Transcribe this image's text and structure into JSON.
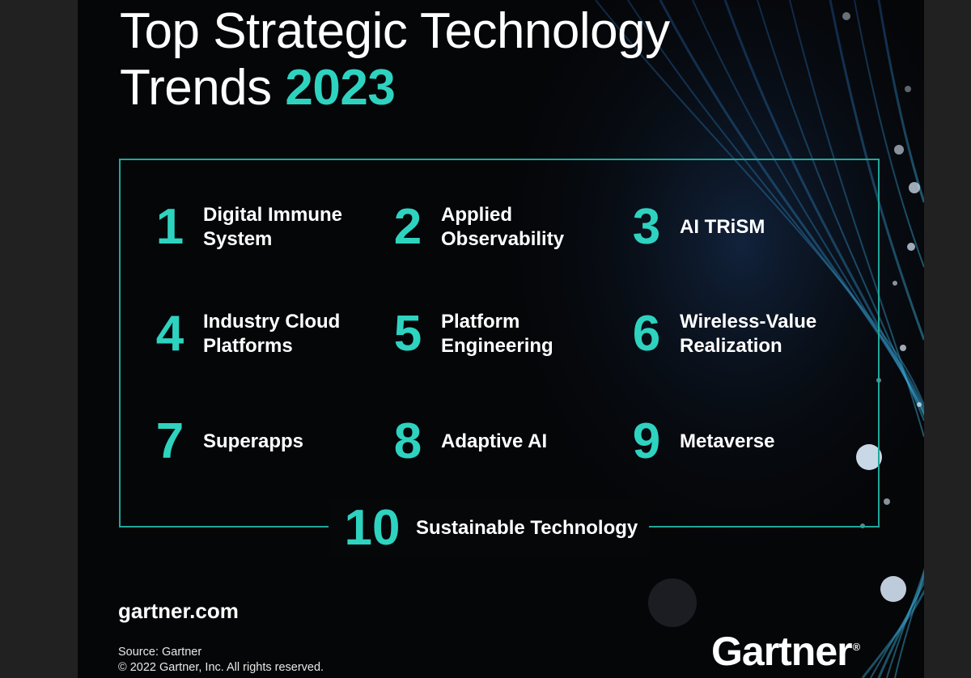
{
  "title": {
    "line1": "Top Strategic Technology",
    "line2_prefix": "Trends",
    "year": "2023"
  },
  "trends": [
    {
      "number": "1",
      "label": "Digital Immune\nSystem"
    },
    {
      "number": "2",
      "label": "Applied\nObservability"
    },
    {
      "number": "3",
      "label": "AI TRiSM"
    },
    {
      "number": "4",
      "label": "Industry Cloud\nPlatforms"
    },
    {
      "number": "5",
      "label": "Platform\nEngineering"
    },
    {
      "number": "6",
      "label": "Wireless-Value\nRealization"
    },
    {
      "number": "7",
      "label": "Superapps"
    },
    {
      "number": "8",
      "label": "Adaptive AI"
    },
    {
      "number": "9",
      "label": "Metaverse"
    },
    {
      "number": "10",
      "label": "Sustainable Technology"
    }
  ],
  "footer": {
    "site": "gartner.com",
    "source": "Source: Gartner",
    "copyright": "© 2022 Gartner, Inc. All rights reserved."
  },
  "logo": {
    "text": "Gartner",
    "mark": "®"
  },
  "colors": {
    "accent": "#2ed3c0",
    "background": "#050608",
    "text": "#ffffff",
    "border": "#1fa89a"
  }
}
